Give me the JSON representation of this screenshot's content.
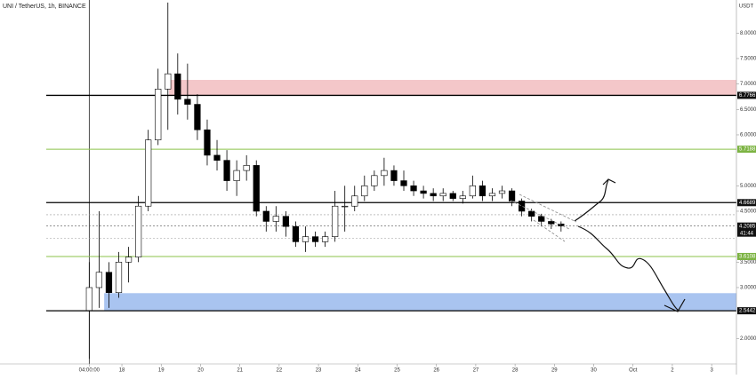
{
  "chart_data": {
    "type": "candlestick",
    "title": "UNI / TetherUS, 1h, BINANCE",
    "currency": "USDT",
    "x": [
      17.17,
      17.42,
      17.67,
      17.92,
      18.17,
      18.42,
      18.67,
      18.92,
      19.17,
      19.42,
      19.67,
      19.92,
      20.17,
      20.42,
      20.67,
      20.92,
      21.17,
      21.42,
      21.67,
      21.92,
      22.17,
      22.42,
      22.67,
      22.92,
      23.17,
      23.42,
      23.67,
      23.92,
      24.17,
      24.42,
      24.67,
      24.92,
      25.17,
      25.42,
      25.67,
      25.92,
      26.17,
      26.42,
      26.67,
      26.92,
      27.17,
      27.42,
      27.67,
      27.92,
      28.17,
      28.42,
      28.67,
      28.92,
      29.17
    ],
    "open": [
      2.55,
      3.0,
      3.3,
      2.9,
      3.5,
      3.6,
      4.6,
      5.9,
      6.9,
      7.2,
      6.7,
      6.6,
      6.1,
      5.6,
      5.5,
      5.1,
      5.3,
      5.4,
      4.5,
      4.3,
      4.4,
      4.2,
      3.9,
      4.0,
      3.9,
      4.0,
      4.6,
      4.6,
      4.8,
      5.0,
      5.2,
      5.3,
      5.1,
      5.0,
      4.9,
      4.85,
      4.8,
      4.85,
      4.75,
      4.8,
      5.0,
      4.8,
      4.85,
      4.9,
      4.7,
      4.5,
      4.4,
      4.3,
      4.25
    ],
    "high": [
      3.5,
      4.5,
      3.5,
      3.7,
      3.8,
      4.8,
      6.1,
      7.3,
      8.6,
      7.6,
      7.4,
      6.8,
      6.3,
      5.9,
      5.7,
      5.5,
      5.6,
      5.5,
      4.6,
      4.6,
      4.5,
      4.3,
      4.2,
      4.1,
      4.1,
      4.9,
      5.0,
      5.0,
      5.2,
      5.3,
      5.55,
      5.4,
      5.3,
      5.1,
      5.0,
      4.95,
      4.95,
      4.9,
      4.9,
      5.2,
      5.1,
      4.95,
      5.0,
      4.95,
      4.75,
      4.55,
      4.45,
      4.35,
      4.3
    ],
    "low": [
      1.6,
      2.6,
      2.6,
      2.8,
      3.1,
      3.5,
      4.5,
      5.8,
      6.1,
      6.4,
      6.3,
      5.9,
      5.4,
      5.3,
      4.9,
      4.8,
      5.1,
      4.4,
      4.1,
      4.1,
      4.0,
      3.8,
      3.7,
      3.8,
      3.8,
      3.9,
      4.1,
      4.5,
      4.7,
      4.9,
      5.0,
      5.0,
      4.9,
      4.8,
      4.75,
      4.7,
      4.7,
      4.7,
      4.65,
      4.75,
      4.7,
      4.7,
      4.75,
      4.6,
      4.4,
      4.3,
      4.2,
      4.15,
      4.1
    ],
    "close": [
      3.0,
      3.3,
      2.9,
      3.5,
      3.6,
      4.6,
      5.9,
      6.9,
      7.2,
      6.7,
      6.6,
      6.1,
      5.6,
      5.5,
      5.1,
      5.3,
      5.4,
      4.5,
      4.3,
      4.4,
      4.2,
      3.9,
      4.0,
      3.9,
      4.0,
      4.6,
      4.6,
      4.8,
      5.0,
      5.2,
      5.3,
      5.1,
      5.0,
      4.9,
      4.85,
      4.8,
      4.85,
      4.75,
      4.8,
      5.0,
      4.8,
      4.85,
      4.9,
      4.7,
      4.5,
      4.4,
      4.3,
      4.25,
      4.2085
    ],
    "up_color": "#ffffff",
    "down_color": "#000000",
    "xlim": [
      14.9,
      33.63
    ],
    "xticks": [
      {
        "value": 17.17,
        "label": "04:00:00"
      },
      18,
      19,
      20,
      21,
      22,
      23,
      24,
      25,
      26,
      27,
      28,
      29,
      30,
      {
        "value": 31,
        "label": "Oct"
      },
      {
        "value": 32,
        "label": "2"
      },
      {
        "value": 33,
        "label": "3"
      }
    ],
    "ylim": [
      1.5,
      8.65
    ],
    "yticks": [
      {
        "value": 2,
        "label": "2.0000"
      },
      {
        "value": 3,
        "label": "3.0000"
      },
      {
        "value": 3.5,
        "label": "3.5000"
      },
      {
        "value": 4.5,
        "label": "4.5000"
      },
      {
        "value": 5,
        "label": "5.0000"
      },
      {
        "value": 6,
        "label": "6.0000"
      },
      {
        "value": 6.5,
        "label": "6.5000"
      },
      {
        "value": 7,
        "label": "7.0000"
      },
      {
        "value": 7.5,
        "label": "7.5000"
      },
      {
        "value": 8,
        "label": "8.0000"
      }
    ],
    "levels": [
      {
        "value": 6.7766,
        "color": "#000000"
      },
      {
        "value": 5.7188,
        "color": "#8bc34a"
      },
      {
        "value": 4.6689,
        "color": "#000000"
      },
      {
        "value": 3.6108,
        "color": "#8bc34a"
      },
      {
        "value": 2.5442,
        "color": "#000000"
      }
    ],
    "dashed_levels": [
      4.43,
      3.97
    ],
    "last_price": 4.2085,
    "countdown": "41:44",
    "zones": [
      {
        "from": 6.78,
        "to": 7.08,
        "start": 19.2,
        "color": "#f4c7c9"
      },
      {
        "from": 2.55,
        "to": 2.89,
        "start": 17.55,
        "color": "#a9c4f0"
      }
    ],
    "marker_line": 17.17
  }
}
